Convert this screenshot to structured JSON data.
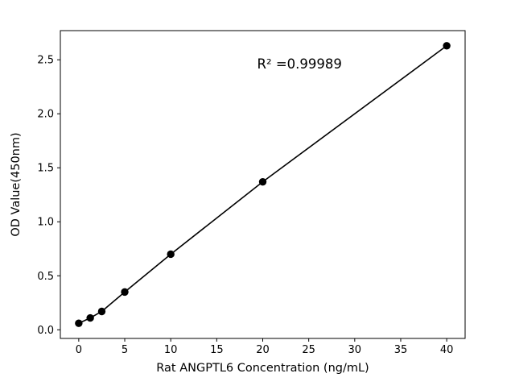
{
  "chart_data": {
    "type": "scatter",
    "title": "",
    "xlabel": "Rat ANGPTL6 Concentration (ng/mL)",
    "ylabel": "OD Value(450nm)",
    "x": [
      0,
      1.25,
      2.5,
      5,
      10,
      20,
      40
    ],
    "y": [
      0.06,
      0.11,
      0.17,
      0.35,
      0.7,
      1.37,
      2.63
    ],
    "xlim": [
      -2,
      42
    ],
    "ylim": [
      -0.08,
      2.77
    ],
    "xticks": [
      0,
      5,
      10,
      15,
      20,
      25,
      30,
      35,
      40
    ],
    "yticks": [
      0.0,
      0.5,
      1.0,
      1.5,
      2.0,
      2.5
    ],
    "x_tick_format": "integer",
    "y_tick_format": "one_decimal",
    "grid": false,
    "legend": "none",
    "line": true,
    "line_color": "#000000",
    "marker_color": "#000000",
    "background": "#ffffff",
    "annotation": {
      "text": "R² =0.99989",
      "x": 24,
      "y": 2.42
    }
  }
}
